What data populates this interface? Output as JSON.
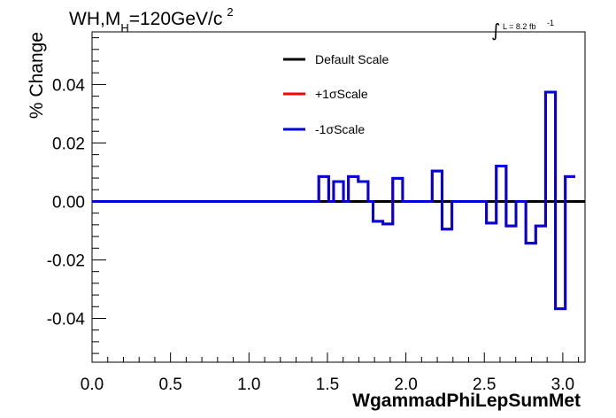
{
  "chart_data": {
    "type": "line",
    "title_main": "WH,M",
    "title_sub": "H",
    "title_rest": "=120GeV/c",
    "title_sup": "2",
    "luminosity_label": "L = 8.2 fb",
    "luminosity_sup": "-1",
    "xlabel": "WgammadPhiLepSumMet",
    "ylabel": "% Change",
    "xlim": [
      0.0,
      3.1416
    ],
    "ylim": [
      -0.055,
      0.058
    ],
    "x_ticks": [
      0.0,
      0.5,
      1.0,
      1.5,
      2.0,
      2.5,
      3.0
    ],
    "x_tick_labels": [
      "0.0",
      "0.5",
      "1.0",
      "1.5",
      "2.0",
      "2.5",
      "3.0"
    ],
    "y_ticks": [
      -0.04,
      -0.02,
      0.0,
      0.02,
      0.04
    ],
    "y_tick_labels": [
      "-0.04",
      "-0.02",
      "0.00",
      "0.02",
      "0.04"
    ],
    "grid": false,
    "legend_position": "top-center",
    "bin_edges": [
      0.0,
      0.0314,
      0.0628,
      0.0942,
      0.1257,
      0.1571,
      0.1885,
      0.2199,
      0.2513,
      0.2827,
      0.3142,
      0.3456,
      0.377,
      0.4084,
      0.4398,
      0.4712,
      0.5027,
      0.5341,
      0.5655,
      0.5969,
      0.6283,
      0.6597,
      0.6912,
      0.7226,
      0.754,
      0.7854,
      0.8168,
      0.8482,
      0.8796,
      0.9111,
      0.9425,
      0.9739,
      1.0053,
      1.0367,
      1.0681,
      1.0996,
      1.131,
      1.1624,
      1.1938,
      1.2252,
      1.2566,
      1.2881,
      1.3195,
      1.3509,
      1.3823,
      1.4137,
      1.4451,
      1.4765,
      1.508,
      1.5394,
      1.5708,
      1.6022,
      1.6336,
      1.665,
      1.6965,
      1.7279,
      1.7593,
      1.7907,
      1.8221,
      1.8535,
      1.885,
      1.9164,
      1.9478,
      1.9792,
      2.0106,
      2.042,
      2.0735,
      2.1049,
      2.1363,
      2.1677,
      2.1991,
      2.2305,
      2.2619,
      2.2934,
      2.3248,
      2.3562,
      2.3876,
      2.419,
      2.4504,
      2.4819,
      2.5133,
      2.5447,
      2.5761,
      2.6075,
      2.6389,
      2.6704,
      2.7018,
      2.7332,
      2.7646,
      2.796,
      2.8274,
      2.8588,
      2.8903,
      2.9217,
      2.9531,
      2.9845,
      3.0159,
      3.0473,
      3.0788,
      3.1102,
      3.1416
    ],
    "series": [
      {
        "name": "Default Scale",
        "color": "#000000",
        "values": [
          0,
          0,
          0,
          0,
          0,
          0,
          0,
          0,
          0,
          0,
          0,
          0,
          0,
          0,
          0,
          0,
          0,
          0,
          0,
          0,
          0,
          0,
          0,
          0,
          0,
          0,
          0,
          0,
          0,
          0,
          0,
          0,
          0,
          0,
          0,
          0,
          0,
          0,
          0,
          0,
          0,
          0,
          0,
          0,
          0,
          0,
          0,
          0,
          0,
          0,
          0,
          0,
          0,
          0,
          0,
          0,
          0,
          0,
          0,
          0,
          0,
          0,
          0,
          0,
          0,
          0,
          0,
          0,
          0,
          0,
          0,
          0,
          0,
          0,
          0,
          0,
          0,
          0,
          0,
          0,
          0,
          0,
          0,
          0,
          0,
          0,
          0,
          0,
          0,
          0,
          0,
          0,
          0,
          0,
          0,
          0,
          0,
          0,
          0,
          0
        ]
      },
      {
        "name": "+1σScale",
        "color": "#ff0000",
        "values": [
          0,
          0,
          0,
          0,
          0,
          0,
          0,
          0,
          0,
          0,
          0,
          0,
          0,
          0,
          0,
          0,
          0,
          0,
          0,
          0,
          0,
          0,
          0,
          0,
          0,
          0,
          0,
          0,
          0,
          0,
          0,
          0,
          0,
          0,
          0,
          0,
          0,
          0,
          0,
          0,
          0,
          0,
          0,
          0,
          0,
          0,
          0.0085,
          0.0085,
          0,
          0.0068,
          0.0068,
          0,
          0.0085,
          0.0085,
          0.0068,
          0.0068,
          0,
          -0.0068,
          -0.0068,
          -0.0077,
          -0.0077,
          0.0079,
          0.0079,
          0,
          0,
          0,
          0,
          0,
          0,
          0.0104,
          0.0104,
          -0.0095,
          -0.0095,
          0,
          0,
          0,
          0,
          0,
          0,
          0,
          -0.0074,
          -0.0074,
          0.0121,
          0.0121,
          -0.0084,
          -0.0084,
          0,
          0,
          -0.0143,
          -0.0143,
          -0.0084,
          -0.0084,
          0.0374,
          0.0374,
          -0.0367,
          -0.0367,
          0.0085,
          0.0085
        ]
      },
      {
        "name": "-1σScale",
        "color": "#0000dd",
        "values": [
          0,
          0,
          0,
          0,
          0,
          0,
          0,
          0,
          0,
          0,
          0,
          0,
          0,
          0,
          0,
          0,
          0,
          0,
          0,
          0,
          0,
          0,
          0,
          0,
          0,
          0,
          0,
          0,
          0,
          0,
          0,
          0,
          0,
          0,
          0,
          0,
          0,
          0,
          0,
          0,
          0,
          0,
          0,
          0,
          0,
          0,
          0.0085,
          0.0085,
          0,
          0.0068,
          0.0068,
          0,
          0.0085,
          0.0085,
          0.0068,
          0.0068,
          0,
          -0.0068,
          -0.0068,
          -0.0077,
          -0.0077,
          0.0079,
          0.0079,
          0,
          0,
          0,
          0,
          0,
          0,
          0.0104,
          0.0104,
          -0.0095,
          -0.0095,
          0,
          0,
          0,
          0,
          0,
          0,
          0,
          -0.0074,
          -0.0074,
          0.0121,
          0.0121,
          -0.0084,
          -0.0084,
          0,
          0,
          -0.0143,
          -0.0143,
          -0.0084,
          -0.0084,
          0.0374,
          0.0374,
          -0.0367,
          -0.0367,
          0.0085,
          0.0085
        ]
      }
    ]
  }
}
